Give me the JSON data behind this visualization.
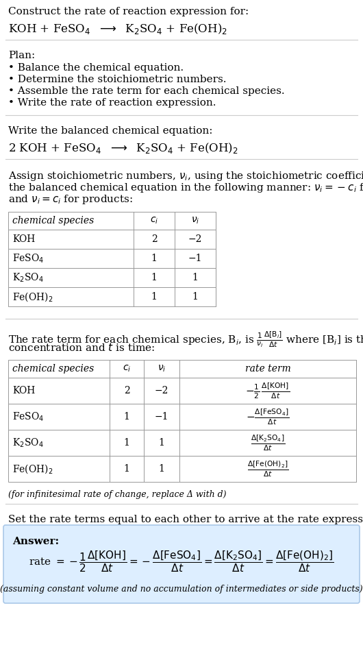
{
  "bg_color": "#ffffff",
  "text_color": "#000000",
  "title_line1": "Construct the rate of reaction expression for:",
  "plan_header": "Plan:",
  "plan_items": [
    "• Balance the chemical equation.",
    "• Determine the stoichiometric numbers.",
    "• Assemble the rate term for each chemical species.",
    "• Write the rate of reaction expression."
  ],
  "balanced_header": "Write the balanced chemical equation:",
  "assign_header_parts": [
    "Assign stoichiometric numbers, $\\nu_i$, using the stoichiometric coefficients, $c_i$, from",
    "the balanced chemical equation in the following manner: $\\nu_i = -c_i$ for reactants",
    "and $\\nu_i = c_i$ for products:"
  ],
  "table1_headers": [
    "chemical species",
    "$c_i$",
    "$\\nu_i$"
  ],
  "table1_rows": [
    [
      "KOH",
      "2",
      "−2"
    ],
    [
      "FeSO$_4$",
      "1",
      "−1"
    ],
    [
      "K$_2$SO$_4$",
      "1",
      "1"
    ],
    [
      "Fe(OH)$_2$",
      "1",
      "1"
    ]
  ],
  "rate_term_header_parts": [
    "The rate term for each chemical species, B$_i$, is $\\frac{1}{\\nu_i}\\frac{\\Delta[\\mathrm{B}_i]}{\\Delta t}$ where [B$_i$] is the amount",
    "concentration and $t$ is time:"
  ],
  "table2_headers": [
    "chemical species",
    "$c_i$",
    "$\\nu_i$",
    "rate term"
  ],
  "table2_rows": [
    [
      "KOH",
      "2",
      "−2",
      "$-\\frac{1}{2}\\,\\frac{\\Delta[\\mathrm{KOH}]}{\\Delta t}$"
    ],
    [
      "FeSO$_4$",
      "1",
      "−1",
      "$-\\frac{\\Delta[\\mathrm{FeSO_4}]}{\\Delta t}$"
    ],
    [
      "K$_2$SO$_4$",
      "1",
      "1",
      "$\\frac{\\Delta[\\mathrm{K_2SO_4}]}{\\Delta t}$"
    ],
    [
      "Fe(OH)$_2$",
      "1",
      "1",
      "$\\frac{\\Delta[\\mathrm{Fe(OH)_2}]}{\\Delta t}$"
    ]
  ],
  "infinitesimal_note": "(for infinitesimal rate of change, replace Δ with d)",
  "set_equal_header": "Set the rate terms equal to each other to arrive at the rate expression:",
  "answer_box_color": "#ddeeff",
  "answer_label": "Answer:",
  "assuming_note": "(assuming constant volume and no accumulation of intermediates or side products)",
  "font_size_body": 11,
  "font_size_table": 10,
  "font_size_small": 9,
  "table_line_color": "#999999",
  "sep_line_color": "#cccccc"
}
